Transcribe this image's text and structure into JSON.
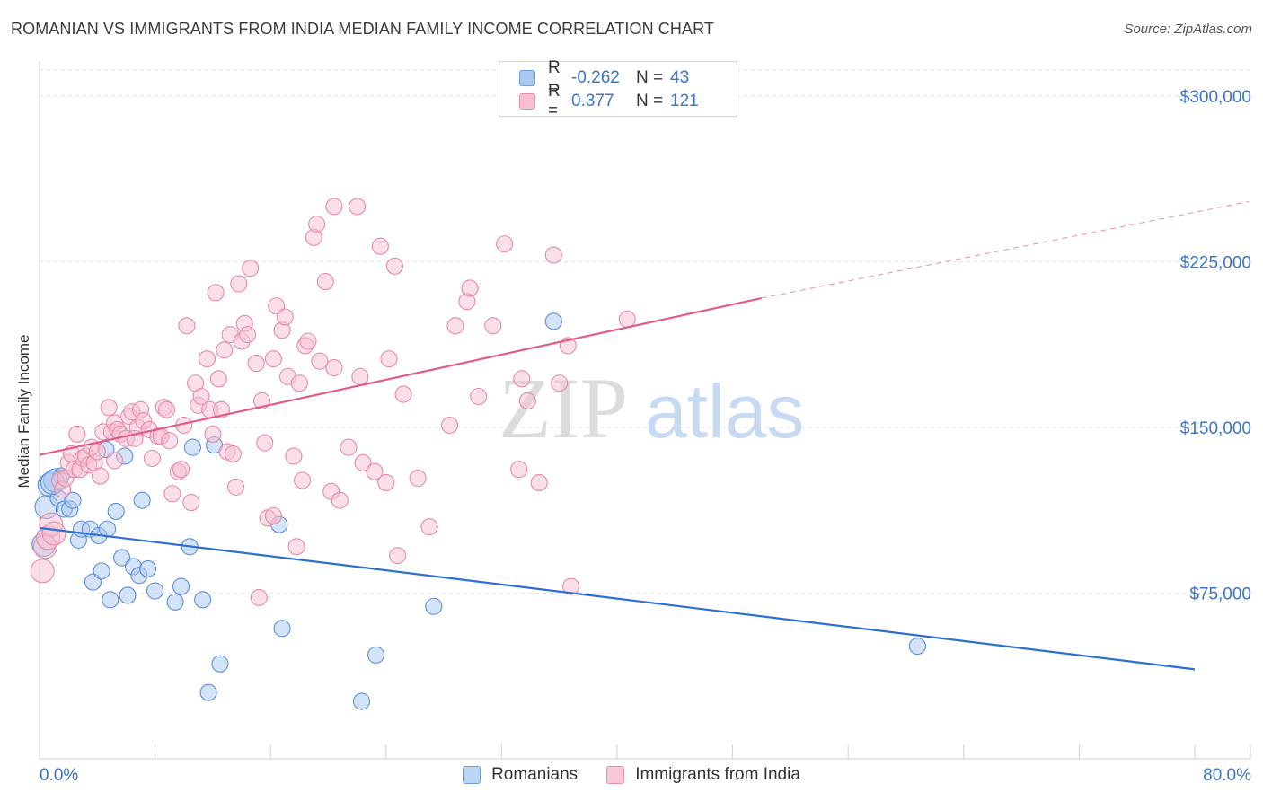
{
  "title": "ROMANIAN VS IMMIGRANTS FROM INDIA MEDIAN FAMILY INCOME CORRELATION CHART",
  "source": "Source: ZipAtlas.com",
  "watermark": {
    "zip": "ZIP",
    "atlas": "atlas"
  },
  "legend_top": [
    {
      "r_label": "R =",
      "r_value": "-0.262",
      "n_label": "N =",
      "n_value": "43",
      "color": "#a9c8ef",
      "stroke": "#6d9ee0"
    },
    {
      "r_label": "R =",
      "r_value": "0.377",
      "n_label": "N =",
      "n_value": "121",
      "color": "#f7bfd1",
      "stroke": "#e98fac"
    }
  ],
  "bottom_legend": [
    {
      "label": "Romanians",
      "color": "#bcd5f3",
      "stroke": "#6d9ee0"
    },
    {
      "label": "Immigrants from India",
      "color": "#f9c8d8",
      "stroke": "#e98fac"
    }
  ],
  "chart_data": {
    "type": "scatter",
    "title": "ROMANIAN VS IMMIGRANTS FROM INDIA MEDIAN FAMILY INCOME CORRELATION CHART",
    "ylabel": "Median Family Income",
    "xlabel": "",
    "xlim": [
      0,
      80
    ],
    "ylim": [
      0,
      315000
    ],
    "x_tick_labels": [
      "0.0%",
      "80.0%"
    ],
    "y_ticks": [
      75000,
      150000,
      225000,
      300000
    ],
    "y_tick_labels": [
      "$75,000",
      "$150,000",
      "$225,000",
      "$300,000"
    ],
    "grid": true,
    "series": [
      {
        "name": "Romanians",
        "fill": "#a9c8ef",
        "stroke": "#5b8fd8",
        "trend_color": "#2d6fd0",
        "trend": {
          "x0": 0,
          "y0": 104500,
          "x1": 80,
          "y1": 40500,
          "dash_from": 80
        },
        "points": [
          [
            0.3,
            97000
          ],
          [
            0.5,
            114000
          ],
          [
            0.7,
            124000
          ],
          [
            1.1,
            126000
          ],
          [
            1.3,
            118000
          ],
          [
            1.5,
            128000
          ],
          [
            1.7,
            113000
          ],
          [
            2.1,
            113000
          ],
          [
            2.3,
            117000
          ],
          [
            2.7,
            99000
          ],
          [
            2.9,
            104000
          ],
          [
            3.5,
            104000
          ],
          [
            3.7,
            80000
          ],
          [
            4.1,
            101000
          ],
          [
            4.3,
            85000
          ],
          [
            4.7,
            104000
          ],
          [
            4.9,
            72000
          ],
          [
            5.3,
            112000
          ],
          [
            5.7,
            91000
          ],
          [
            6.1,
            74000
          ],
          [
            6.5,
            87000
          ],
          [
            6.9,
            83000
          ],
          [
            7.1,
            117000
          ],
          [
            7.5,
            86000
          ],
          [
            8.0,
            76000
          ],
          [
            9.4,
            71000
          ],
          [
            9.8,
            78000
          ],
          [
            10.4,
            96000
          ],
          [
            10.6,
            141000
          ],
          [
            11.3,
            72000
          ],
          [
            11.7,
            30000
          ],
          [
            12.5,
            43000
          ],
          [
            12.1,
            142000
          ],
          [
            5.9,
            137000
          ],
          [
            16.6,
            106000
          ],
          [
            16.8,
            59000
          ],
          [
            22.3,
            26000
          ],
          [
            23.3,
            47000
          ],
          [
            27.3,
            69000
          ],
          [
            35.6,
            198000
          ],
          [
            60.8,
            51000
          ],
          [
            4.6,
            140000
          ],
          [
            0.9,
            125000
          ]
        ]
      },
      {
        "name": "Immigrants from India",
        "fill": "#f7bfd1",
        "stroke": "#e58aa8",
        "trend_color": "#e05d87",
        "trend": {
          "x0": 0,
          "y0": 137500,
          "x1": 50,
          "y1": 208500,
          "dash_from": 50,
          "dash_to_x": 80,
          "dash_to_y": 251000
        },
        "points": [
          [
            0.2,
            85000
          ],
          [
            0.4,
            96000
          ],
          [
            0.6,
            100000
          ],
          [
            0.8,
            106000
          ],
          [
            1.0,
            102000
          ],
          [
            1.4,
            126000
          ],
          [
            1.6,
            122000
          ],
          [
            1.8,
            127000
          ],
          [
            2.0,
            134000
          ],
          [
            2.2,
            138000
          ],
          [
            2.4,
            131000
          ],
          [
            2.6,
            147000
          ],
          [
            2.8,
            131000
          ],
          [
            3.0,
            136000
          ],
          [
            3.2,
            137000
          ],
          [
            3.4,
            133000
          ],
          [
            3.6,
            141000
          ],
          [
            3.8,
            134000
          ],
          [
            4.0,
            139000
          ],
          [
            4.2,
            128000
          ],
          [
            4.4,
            148000
          ],
          [
            4.8,
            159000
          ],
          [
            5.0,
            148000
          ],
          [
            5.2,
            152000
          ],
          [
            5.4,
            149000
          ],
          [
            5.6,
            147000
          ],
          [
            6.0,
            145000
          ],
          [
            6.2,
            155000
          ],
          [
            6.4,
            157000
          ],
          [
            6.8,
            150000
          ],
          [
            7.0,
            158000
          ],
          [
            7.2,
            153000
          ],
          [
            7.6,
            149000
          ],
          [
            7.8,
            136000
          ],
          [
            8.2,
            146000
          ],
          [
            8.4,
            146000
          ],
          [
            8.6,
            159000
          ],
          [
            8.8,
            158000
          ],
          [
            9.0,
            144000
          ],
          [
            9.2,
            120000
          ],
          [
            9.6,
            130000
          ],
          [
            10.0,
            151000
          ],
          [
            10.2,
            196000
          ],
          [
            10.5,
            116000
          ],
          [
            10.8,
            170000
          ],
          [
            11.0,
            160000
          ],
          [
            11.2,
            164000
          ],
          [
            11.6,
            181000
          ],
          [
            11.8,
            158000
          ],
          [
            12.0,
            147000
          ],
          [
            12.2,
            211000
          ],
          [
            12.4,
            172000
          ],
          [
            12.6,
            158000
          ],
          [
            12.8,
            185000
          ],
          [
            13.0,
            139000
          ],
          [
            13.2,
            192000
          ],
          [
            13.4,
            138000
          ],
          [
            13.6,
            123000
          ],
          [
            13.8,
            215000
          ],
          [
            14.0,
            189000
          ],
          [
            14.2,
            197000
          ],
          [
            14.4,
            192000
          ],
          [
            14.6,
            222000
          ],
          [
            15.0,
            179000
          ],
          [
            15.4,
            162000
          ],
          [
            15.6,
            143000
          ],
          [
            15.8,
            109000
          ],
          [
            16.2,
            181000
          ],
          [
            16.4,
            205000
          ],
          [
            16.8,
            194000
          ],
          [
            17.0,
            200000
          ],
          [
            17.2,
            173000
          ],
          [
            17.6,
            137000
          ],
          [
            17.8,
            96000
          ],
          [
            18.0,
            170000
          ],
          [
            18.4,
            187000
          ],
          [
            18.6,
            189000
          ],
          [
            19.0,
            236000
          ],
          [
            19.2,
            242000
          ],
          [
            19.4,
            180000
          ],
          [
            19.8,
            216000
          ],
          [
            20.2,
            121000
          ],
          [
            20.4,
            177000
          ],
          [
            20.8,
            117000
          ],
          [
            20.4,
            250000
          ],
          [
            22.0,
            250000
          ],
          [
            22.2,
            173000
          ],
          [
            22.4,
            134000
          ],
          [
            23.2,
            130000
          ],
          [
            23.6,
            232000
          ],
          [
            24.0,
            125000
          ],
          [
            24.2,
            181000
          ],
          [
            24.6,
            223000
          ],
          [
            24.8,
            92000
          ],
          [
            25.2,
            165000
          ],
          [
            26.2,
            127000
          ],
          [
            27.0,
            105000
          ],
          [
            28.4,
            151000
          ],
          [
            28.8,
            196000
          ],
          [
            29.6,
            207000
          ],
          [
            29.8,
            213000
          ],
          [
            30.4,
            164000
          ],
          [
            31.4,
            196000
          ],
          [
            32.2,
            233000
          ],
          [
            33.2,
            131000
          ],
          [
            33.4,
            172000
          ],
          [
            33.8,
            162000
          ],
          [
            34.6,
            125000
          ],
          [
            35.6,
            228000
          ],
          [
            36.0,
            170000
          ],
          [
            36.6,
            187000
          ],
          [
            36.8,
            78000
          ],
          [
            40.7,
            199000
          ],
          [
            5.2,
            135000
          ],
          [
            9.8,
            131000
          ],
          [
            6.6,
            145000
          ],
          [
            15.2,
            73000
          ],
          [
            21.4,
            141000
          ],
          [
            18.2,
            126000
          ],
          [
            16.2,
            110000
          ]
        ]
      }
    ]
  }
}
